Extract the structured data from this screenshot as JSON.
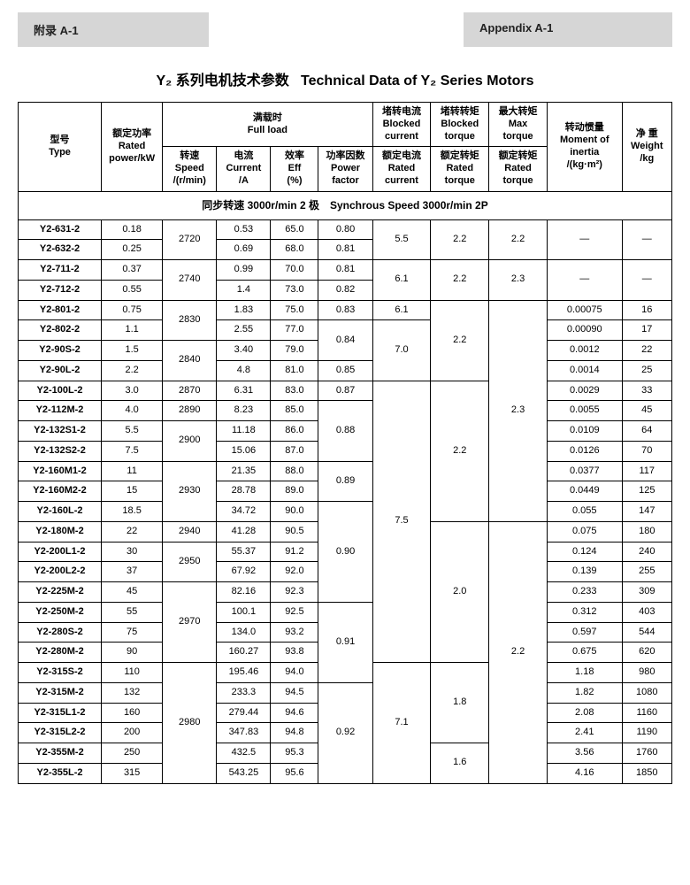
{
  "header": {
    "left": "附录 A-1",
    "right": "Appendix A-1"
  },
  "title_cn": "Y₂ 系列电机技术参数",
  "title_en": "Technical Data of Y₂ Series Motors",
  "cols": {
    "type": "型号\nType",
    "rated_power": "额定功率\nRated\npower/kW",
    "full_load": "满载时\nFull load",
    "speed": "转速\nSpeed\n/(r/min)",
    "current": "电流\nCurrent\n/A",
    "eff": "效率\nEff\n(%)",
    "pf": "功率因数\nPower\nfactor",
    "blocked_current": "堵转电流\nBlocked\ncurrent",
    "rated_current": "额定电流\nRated\ncurrent",
    "blocked_torque": "堵转转矩\nBlocked\ntorque",
    "rated_torque": "额定转矩\nRated\ntorque",
    "max_torque": "最大转矩\nMax\ntorque",
    "rated_torque2": "额定转矩\nRated\ntorque",
    "inertia": "转动惯量\nMoment of\ninertia\n/(kg·m²)",
    "weight": "净 重\nWeight\n/kg"
  },
  "section": "同步转速 3000r/min 2 极　Synchrous Speed 3000r/min 2P",
  "col_widths": [
    "80",
    "58",
    "52",
    "52",
    "46",
    "52",
    "56",
    "56",
    "56",
    "72",
    "48"
  ],
  "rows": [
    {
      "type": "Y2-631-2",
      "power": "0.18",
      "speed": "2720",
      "speed_rs": 2,
      "current": "0.53",
      "eff": "65.0",
      "pf": "0.80",
      "bc": "5.5",
      "bc_rs": 2,
      "bt": "2.2",
      "bt_rs": 2,
      "mt": "2.2",
      "mt_rs": 2,
      "inertia": "—",
      "inertia_rs": 2,
      "weight": "—",
      "weight_rs": 2
    },
    {
      "type": "Y2-632-2",
      "power": "0.25",
      "current": "0.69",
      "eff": "68.0",
      "pf": "0.81"
    },
    {
      "type": "Y2-711-2",
      "power": "0.37",
      "speed": "2740",
      "speed_rs": 2,
      "current": "0.99",
      "eff": "70.0",
      "pf": "0.81",
      "bc": "6.1",
      "bc_rs": 2,
      "bt": "2.2",
      "bt_rs": 2,
      "mt": "2.3",
      "mt_rs": 2,
      "inertia": "—",
      "inertia_rs": 2,
      "weight": "—",
      "weight_rs": 2
    },
    {
      "type": "Y2-712-2",
      "power": "0.55",
      "current": "1.4",
      "eff": "73.0",
      "pf": "0.82"
    },
    {
      "type": "Y2-801-2",
      "power": "0.75",
      "speed": "2830",
      "speed_rs": 2,
      "current": "1.83",
      "eff": "75.0",
      "pf": "0.83",
      "bc": "6.1",
      "bc_rs": 1,
      "bt": "2.2",
      "bt_rs": 4,
      "mt": "2.3",
      "mt_rs": 11,
      "inertia": "0.00075",
      "weight": "16"
    },
    {
      "type": "Y2-802-2",
      "power": "1.1",
      "current": "2.55",
      "eff": "77.0",
      "pf": "0.84",
      "pf_rs": 2,
      "bc": "7.0",
      "bc_rs": 3,
      "inertia": "0.00090",
      "weight": "17"
    },
    {
      "type": "Y2-90S-2",
      "power": "1.5",
      "speed": "2840",
      "speed_rs": 2,
      "current": "3.40",
      "eff": "79.0",
      "inertia": "0.0012",
      "weight": "22"
    },
    {
      "type": "Y2-90L-2",
      "power": "2.2",
      "current": "4.8",
      "eff": "81.0",
      "pf": "0.85",
      "inertia": "0.0014",
      "weight": "25"
    },
    {
      "type": "Y2-100L-2",
      "power": "3.0",
      "speed": "2870",
      "current": "6.31",
      "eff": "83.0",
      "pf": "0.87",
      "bc": "7.5",
      "bc_rs": 14,
      "bt": "2.2",
      "bt_rs": 7,
      "inertia": "0.0029",
      "weight": "33"
    },
    {
      "type": "Y2-112M-2",
      "power": "4.0",
      "speed": "2890",
      "current": "8.23",
      "eff": "85.0",
      "pf": "0.88",
      "pf_rs": 3,
      "inertia": "0.0055",
      "weight": "45"
    },
    {
      "type": "Y2-132S1-2",
      "power": "5.5",
      "speed": "2900",
      "speed_rs": 2,
      "current": "11.18",
      "eff": "86.0",
      "inertia": "0.0109",
      "weight": "64"
    },
    {
      "type": "Y2-132S2-2",
      "power": "7.5",
      "current": "15.06",
      "eff": "87.0",
      "inertia": "0.0126",
      "weight": "70"
    },
    {
      "type": "Y2-160M1-2",
      "power": "11",
      "speed": "2930",
      "speed_rs": 3,
      "current": "21.35",
      "eff": "88.0",
      "pf": "0.89",
      "pf_rs": 2,
      "inertia": "0.0377",
      "weight": "117"
    },
    {
      "type": "Y2-160M2-2",
      "power": "15",
      "current": "28.78",
      "eff": "89.0",
      "inertia": "0.0449",
      "weight": "125"
    },
    {
      "type": "Y2-160L-2",
      "power": "18.5",
      "current": "34.72",
      "eff": "90.0",
      "pf": "0.90",
      "pf_rs": 5,
      "inertia": "0.055",
      "weight": "147"
    },
    {
      "type": "Y2-180M-2",
      "power": "22",
      "speed": "2940",
      "current": "41.28",
      "eff": "90.5",
      "bt": "2.0",
      "bt_rs": 7,
      "mt": "2.2",
      "mt_rs": 13,
      "inertia": "0.075",
      "weight": "180"
    },
    {
      "type": "Y2-200L1-2",
      "power": "30",
      "speed": "2950",
      "speed_rs": 2,
      "current": "55.37",
      "eff": "91.2",
      "inertia": "0.124",
      "weight": "240"
    },
    {
      "type": "Y2-200L2-2",
      "power": "37",
      "current": "67.92",
      "eff": "92.0",
      "inertia": "0.139",
      "weight": "255"
    },
    {
      "type": "Y2-225M-2",
      "power": "45",
      "speed": "2970",
      "speed_rs": 4,
      "current": "82.16",
      "eff": "92.3",
      "inertia": "0.233",
      "weight": "309"
    },
    {
      "type": "Y2-250M-2",
      "power": "55",
      "current": "100.1",
      "eff": "92.5",
      "pf": "0.91",
      "pf_rs": 4,
      "inertia": "0.312",
      "weight": "403"
    },
    {
      "type": "Y2-280S-2",
      "power": "75",
      "current": "134.0",
      "eff": "93.2",
      "inertia": "0.597",
      "weight": "544"
    },
    {
      "type": "Y2-280M-2",
      "power": "90",
      "current": "160.27",
      "eff": "93.8",
      "inertia": "0.675",
      "weight": "620"
    },
    {
      "type": "Y2-315S-2",
      "power": "110",
      "speed": "2980",
      "speed_rs": 6,
      "current": "195.46",
      "eff": "94.0",
      "bc": "7.1",
      "bc_rs": 6,
      "bt": "1.8",
      "bt_rs": 4,
      "inertia": "1.18",
      "weight": "980"
    },
    {
      "type": "Y2-315M-2",
      "power": "132",
      "current": "233.3",
      "eff": "94.5",
      "pf": "0.92",
      "pf_rs": 5,
      "inertia": "1.82",
      "weight": "1080"
    },
    {
      "type": "Y2-315L1-2",
      "power": "160",
      "current": "279.44",
      "eff": "94.6",
      "inertia": "2.08",
      "weight": "1160"
    },
    {
      "type": "Y2-315L2-2",
      "power": "200",
      "current": "347.83",
      "eff": "94.8",
      "inertia": "2.41",
      "weight": "1190"
    },
    {
      "type": "Y2-355M-2",
      "power": "250",
      "current": "432.5",
      "eff": "95.3",
      "bt": "1.6",
      "bt_rs": 2,
      "inertia": "3.56",
      "weight": "1760"
    },
    {
      "type": "Y2-355L-2",
      "power": "315",
      "current": "543.25",
      "eff": "95.6",
      "inertia": "4.16",
      "weight": "1850"
    }
  ]
}
